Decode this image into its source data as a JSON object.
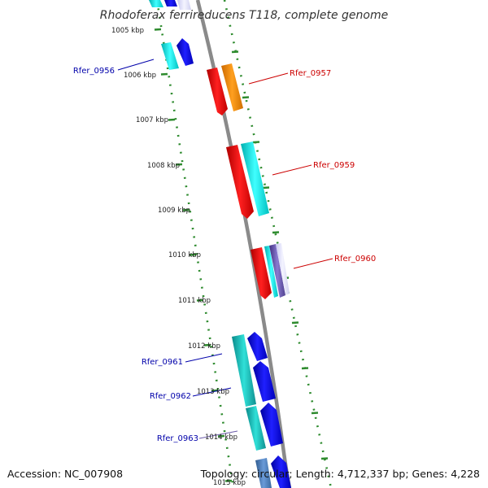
{
  "title": "Rhodoferax ferrireducens T118, complete genome",
  "footer": {
    "accession": "Accession: NC_007908",
    "topology": "Topology: circular; Length: 4,712,337 bp; Genes: 4,228"
  },
  "colors": {
    "backbone": "#8a8a8a",
    "tick_dots": "#2e8b2e",
    "label_forward": "#cc0000",
    "label_reverse": "#0000aa",
    "gene_red": "#ff0000",
    "gene_orange": "#ff8c00",
    "gene_cyan": "#00d8d8",
    "gene_blue": "#0000ee",
    "gene_teal": "#1aa8a8",
    "gene_purple": "#6a5aa8",
    "gene_steel": "#4a7ab8"
  },
  "kbp_markers": [
    "1005 kbp",
    "1006 kbp",
    "1007 kbp",
    "1008 kbp",
    "1009 kbp",
    "1010 kbp",
    "1011 kbp",
    "1012 kbp",
    "1013 kbp",
    "1014 kbp",
    "1015 kbp"
  ],
  "gene_labels": {
    "forward": [
      "Rfer_0957",
      "Rfer_0959",
      "Rfer_0960"
    ],
    "reverse": [
      "Rfer_0956",
      "Rfer_0961",
      "Rfer_0962",
      "Rfer_0963"
    ]
  }
}
